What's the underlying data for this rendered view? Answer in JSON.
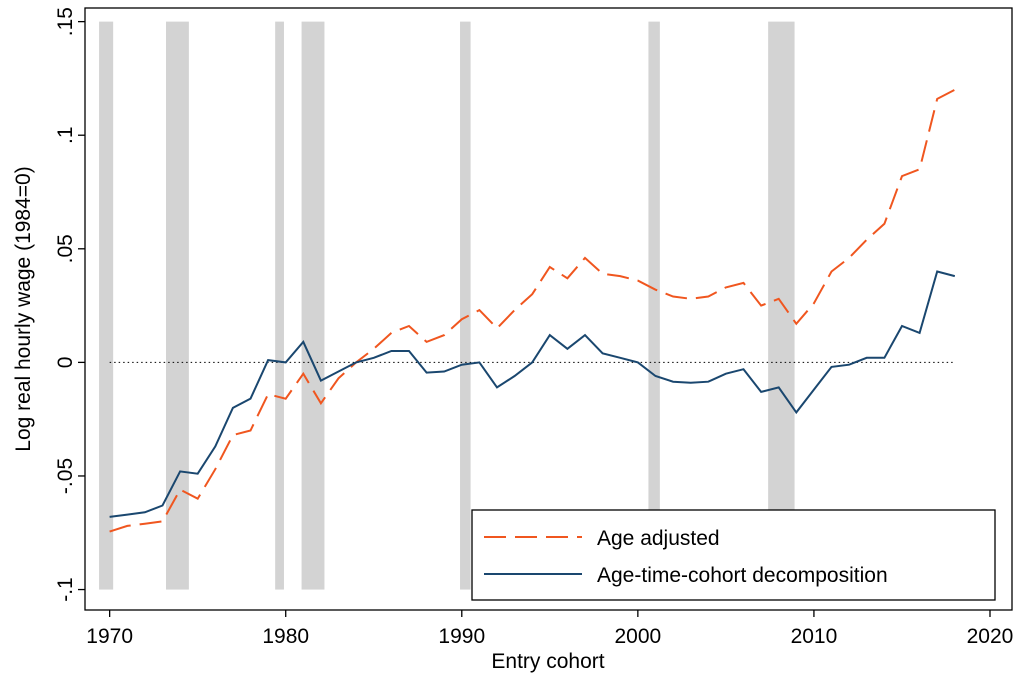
{
  "chart_data": {
    "type": "line",
    "x_label": "Entry cohort",
    "y_label": "Log real hourly wage (1984=0)",
    "x": [
      1970,
      1971,
      1972,
      1973,
      1974,
      1975,
      1976,
      1977,
      1978,
      1979,
      1980,
      1981,
      1982,
      1983,
      1984,
      1985,
      1986,
      1987,
      1988,
      1989,
      1990,
      1991,
      1992,
      1993,
      1994,
      1995,
      1996,
      1997,
      1998,
      1999,
      2000,
      2001,
      2002,
      2003,
      2004,
      2005,
      2006,
      2007,
      2008,
      2009,
      2010,
      2011,
      2012,
      2013,
      2014,
      2015,
      2016,
      2017,
      2018
    ],
    "series": [
      {
        "name": "Age adjusted",
        "color": "#f0561f",
        "style": "dashed",
        "values": [
          -0.0745,
          -0.072,
          -0.071,
          -0.07,
          -0.056,
          -0.06,
          -0.047,
          -0.032,
          -0.03,
          -0.014,
          -0.016,
          -0.005,
          -0.018,
          -0.007,
          0,
          0.006,
          0.013,
          0.016,
          0.009,
          0.012,
          0.019,
          0.023,
          0.015,
          0.023,
          0.03,
          0.042,
          0.037,
          0.046,
          0.039,
          0.038,
          0.036,
          0.032,
          0.029,
          0.028,
          0.029,
          0.033,
          0.035,
          0.025,
          0.028,
          0.017,
          0.026,
          0.04,
          0.046,
          0.054,
          0.061,
          0.082,
          0.085,
          0.116,
          0.12
        ]
      },
      {
        "name": "Age-time-cohort decomposition",
        "color": "#1a476f",
        "style": "solid",
        "values": [
          -0.068,
          -0.067,
          -0.066,
          -0.063,
          -0.048,
          -0.049,
          -0.037,
          -0.02,
          -0.016,
          0.001,
          0,
          0.009,
          -0.008,
          -0.004,
          0,
          0.002,
          0.005,
          0.005,
          -0.0045,
          -0.004,
          -0.001,
          0,
          -0.011,
          -0.006,
          0,
          0.012,
          0.006,
          0.012,
          0.004,
          0.002,
          0,
          -0.006,
          -0.0085,
          -0.009,
          -0.0085,
          -0.005,
          -0.003,
          -0.013,
          -0.011,
          -0.022,
          -0.012,
          -0.002,
          -0.001,
          0.002,
          0.002,
          0.016,
          0.013,
          0.04,
          0.038
        ]
      }
    ],
    "shaded_x": [
      [
        1969.4,
        1970.2
      ],
      [
        1973.2,
        1974.5
      ],
      [
        1979.4,
        1979.9
      ],
      [
        1980.9,
        1982.2
      ],
      [
        1989.9,
        1990.5
      ],
      [
        2000.6,
        2001.25
      ],
      [
        2007.4,
        2008.9
      ]
    ],
    "shaded_y": [
      -0.1,
      0.15
    ],
    "shade_color": "#d3d3d3",
    "reference_y": 0,
    "xlim": [
      1968.6,
      2021.25
    ],
    "ylim": [
      -0.109,
      0.156
    ],
    "xticks": [
      1970,
      1980,
      1990,
      2000,
      2010,
      2020
    ],
    "yticks": [
      {
        "value": -0.1,
        "label": "-.1"
      },
      {
        "value": -0.05,
        "label": "-.05"
      },
      0,
      {
        "value": 0.05,
        "label": ".05"
      },
      {
        "value": 0.1,
        "label": ".1"
      },
      {
        "value": 0.15,
        "label": ".15"
      }
    ],
    "legend": "lower right"
  }
}
